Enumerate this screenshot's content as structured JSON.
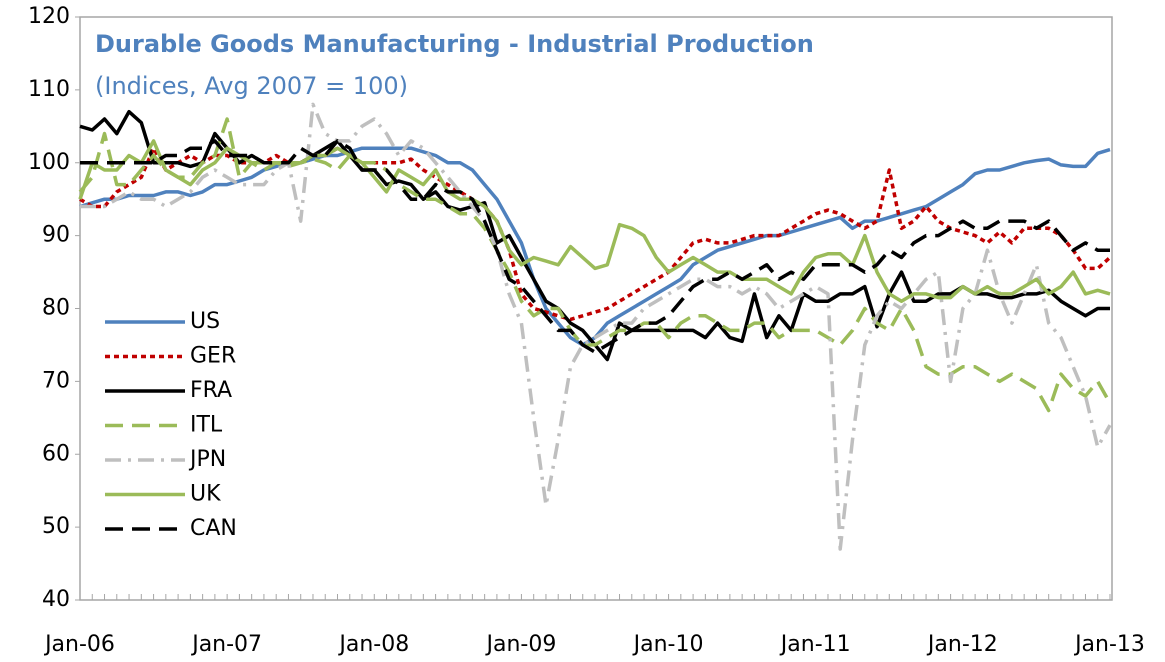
{
  "chart_data": {
    "type": "line",
    "title": "Durable Goods  Manufacturing  - Industrial Production",
    "subtitle": "(Indices, Avg 2007 = 100)",
    "categories": [
      "Jan-06",
      null,
      null,
      null,
      null,
      null,
      null,
      null,
      null,
      null,
      null,
      null,
      "Jan-07",
      null,
      null,
      null,
      null,
      null,
      null,
      null,
      null,
      null,
      null,
      null,
      "Jan-08",
      null,
      null,
      null,
      null,
      null,
      null,
      null,
      null,
      null,
      null,
      null,
      "Jan-09",
      null,
      null,
      null,
      null,
      null,
      null,
      null,
      null,
      null,
      null,
      null,
      "Jan-10",
      null,
      null,
      null,
      null,
      null,
      null,
      null,
      null,
      null,
      null,
      null,
      "Jan-11",
      null,
      null,
      null,
      null,
      null,
      null,
      null,
      null,
      null,
      null,
      null,
      "Jan-12",
      null,
      null,
      null,
      null,
      null,
      null,
      null,
      null,
      null,
      null,
      null,
      "Jan-13"
    ],
    "ylim": [
      40,
      120
    ],
    "yticks": [
      40,
      50,
      60,
      70,
      80,
      90,
      100,
      110,
      120
    ],
    "grid": false,
    "legend": "lower-left",
    "series": [
      {
        "name": "US",
        "color": "#4f81bd",
        "dash": "solid",
        "values": [
          94,
          94.5,
          95,
          95,
          95.5,
          95.5,
          95.5,
          96,
          96,
          95.5,
          96,
          97,
          97,
          97.5,
          98,
          99,
          99.5,
          100,
          100,
          100.5,
          101,
          101,
          101.5,
          102,
          102,
          102,
          102,
          102,
          101.5,
          101,
          100,
          100,
          99,
          97,
          95,
          92,
          89,
          84,
          80,
          78,
          76,
          75,
          76,
          78,
          79,
          80,
          81,
          82,
          83,
          84,
          86,
          87,
          88,
          88.5,
          89,
          89.5,
          90,
          90,
          90.5,
          91,
          91.5,
          92,
          92.5,
          91,
          92,
          92,
          92.5,
          93,
          93.5,
          94,
          95,
          96,
          97,
          98.5,
          99,
          99,
          99.5,
          100,
          100.3,
          100.5,
          99.7,
          99.5,
          99.5,
          101.3,
          101.8
        ]
      },
      {
        "name": "GER",
        "color": "#c00000",
        "dash": "dotted",
        "values": [
          95,
          94,
          94,
          96,
          97,
          98,
          102,
          99,
          100,
          101,
          100,
          101,
          101,
          100,
          100,
          100,
          101,
          100,
          100,
          101,
          101,
          102,
          101,
          100,
          100,
          100,
          100,
          100.5,
          99,
          98,
          97,
          96,
          95,
          94,
          92,
          88,
          82,
          80,
          79.5,
          79,
          78.5,
          79,
          79.5,
          80,
          81,
          82,
          83,
          84,
          85,
          87,
          89,
          89.5,
          89,
          89,
          89.5,
          90,
          90,
          90,
          91,
          92,
          93,
          93.5,
          93,
          92,
          91,
          92,
          99,
          91,
          92,
          94,
          92,
          91,
          90.5,
          90,
          89,
          90.5,
          89,
          91,
          91,
          91,
          90,
          88,
          85.5,
          85.5,
          87
        ]
      },
      {
        "name": "FRA",
        "color": "#000000",
        "dash": "solid",
        "values": [
          105,
          104.5,
          106,
          104,
          107,
          105.5,
          100,
          100,
          100,
          99.5,
          100,
          104,
          102,
          100,
          101,
          100,
          100,
          100,
          100,
          101,
          102,
          103,
          101,
          99,
          99,
          97,
          97.5,
          97,
          95,
          96,
          94,
          93.5,
          94,
          94.5,
          89,
          90,
          87,
          84,
          81,
          80,
          78,
          77,
          75,
          73,
          78,
          77,
          77,
          77,
          77,
          77,
          77,
          76,
          78,
          76,
          75.5,
          82,
          76,
          79,
          77,
          82,
          81,
          81,
          82,
          82,
          83,
          77.5,
          82,
          85,
          81,
          81,
          82,
          82,
          83,
          82,
          82,
          81.5,
          81.5,
          82,
          82,
          82.5,
          81,
          80,
          79,
          80,
          80
        ]
      },
      {
        "name": "ITL",
        "color": "#9bbb59",
        "dash": "dashed",
        "values": [
          96,
          98,
          104,
          97,
          97,
          99,
          101,
          99,
          98,
          98,
          100,
          101,
          106,
          98,
          100,
          99,
          100,
          99.5,
          100,
          100.5,
          100,
          99,
          101,
          100,
          100,
          99,
          97,
          96,
          95,
          95,
          94,
          93,
          93,
          91,
          88,
          85,
          81,
          79,
          80,
          80,
          77,
          75,
          75,
          76,
          77,
          77,
          78,
          78,
          76,
          78,
          79,
          79,
          78,
          77,
          77,
          78,
          78,
          76,
          77,
          77,
          77,
          76,
          75,
          77,
          80,
          78,
          77,
          80,
          77,
          72,
          71,
          71,
          72,
          72,
          71,
          70,
          71,
          70,
          69,
          66,
          71,
          69,
          68,
          70,
          67
        ]
      },
      {
        "name": "JPN",
        "color": "#bfbfbf",
        "dash": "dash-dot",
        "values": [
          94,
          94,
          94,
          95,
          96,
          95,
          95,
          94,
          95,
          96,
          98,
          99,
          98,
          97,
          97,
          97,
          99,
          100,
          92,
          108,
          104,
          103,
          103,
          105,
          106,
          104,
          101,
          103,
          102,
          100,
          98,
          96,
          94,
          92,
          88,
          82,
          78,
          65,
          53,
          62,
          72,
          75,
          76,
          77,
          78,
          78,
          80,
          81,
          82,
          83,
          84,
          84,
          83,
          83,
          82,
          83,
          82,
          80,
          81,
          82,
          83,
          82,
          47,
          62,
          75,
          79,
          81,
          80,
          82,
          84,
          85,
          70,
          80,
          82,
          88,
          82,
          78,
          82,
          86,
          78,
          76,
          72,
          68,
          61,
          64
        ]
      },
      {
        "name": "UK",
        "color": "#9bbb59",
        "dash": "solid",
        "values": [
          95,
          100,
          99,
          99,
          101,
          100,
          103,
          99,
          98,
          97,
          99,
          100,
          102,
          101,
          100,
          100,
          100,
          100,
          100,
          101,
          101,
          102,
          101,
          100,
          98,
          96,
          99,
          98,
          97,
          99,
          96,
          95,
          95,
          94,
          92,
          88,
          86,
          87,
          86.5,
          86,
          88.5,
          87,
          85.5,
          86,
          91.5,
          91,
          90,
          87,
          85,
          86,
          87,
          86,
          85,
          85,
          84,
          84,
          84,
          83,
          82,
          85,
          87,
          87.5,
          87.5,
          86,
          90,
          85,
          82,
          81,
          82,
          82,
          81.5,
          81.5,
          83,
          82,
          83,
          82,
          82,
          83,
          84,
          82,
          83,
          85,
          82,
          82.5,
          82
        ]
      },
      {
        "name": "CAN",
        "color": "#000000",
        "dash": "dashed",
        "values": [
          100,
          100,
          100,
          100,
          100,
          100,
          100,
          101,
          101,
          102,
          102,
          103,
          101,
          101,
          101,
          100,
          100,
          100,
          102,
          101,
          101,
          103,
          102,
          99,
          99,
          99,
          97,
          95,
          95,
          97,
          96,
          96,
          95,
          92,
          88,
          84,
          83,
          81,
          79,
          77,
          77,
          75,
          74,
          75,
          76,
          77,
          78,
          78,
          79,
          81,
          83,
          84,
          84,
          85,
          84,
          85,
          86,
          84,
          85,
          84,
          86,
          86,
          86,
          86,
          85,
          86,
          88,
          87,
          89,
          90,
          90,
          91,
          92,
          91,
          91,
          92,
          92,
          92,
          91,
          92,
          90,
          88,
          89,
          88,
          88
        ]
      }
    ]
  }
}
